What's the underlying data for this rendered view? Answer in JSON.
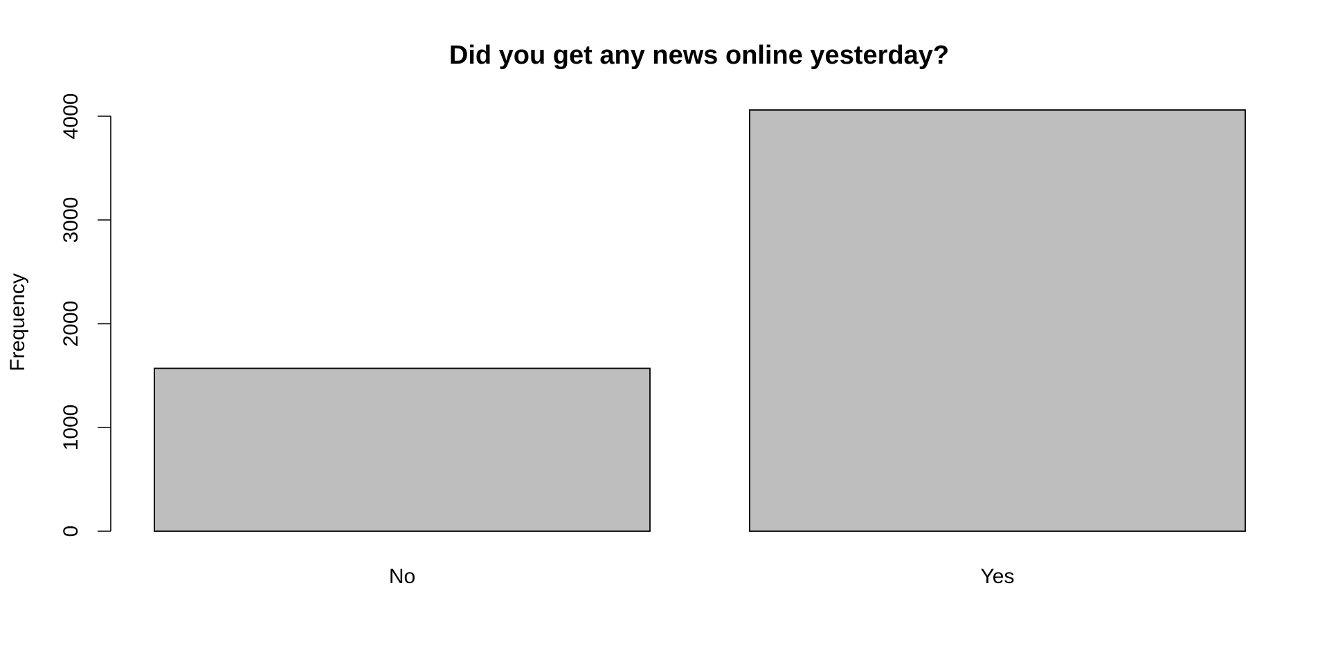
{
  "chart_data": {
    "type": "bar",
    "title": "Did you get any news online yesterday?",
    "xlabel": "",
    "ylabel": "Frequency",
    "categories": [
      "No",
      "Yes"
    ],
    "values": [
      1570,
      4060
    ],
    "ylim": [
      0,
      4000
    ],
    "yticks": [
      0,
      1000,
      2000,
      3000,
      4000
    ],
    "ytick_labels": [
      "0",
      "1000",
      "2000",
      "3000",
      "4000"
    ],
    "bar_color": "#bebebe",
    "grid": false,
    "legend": "none"
  }
}
